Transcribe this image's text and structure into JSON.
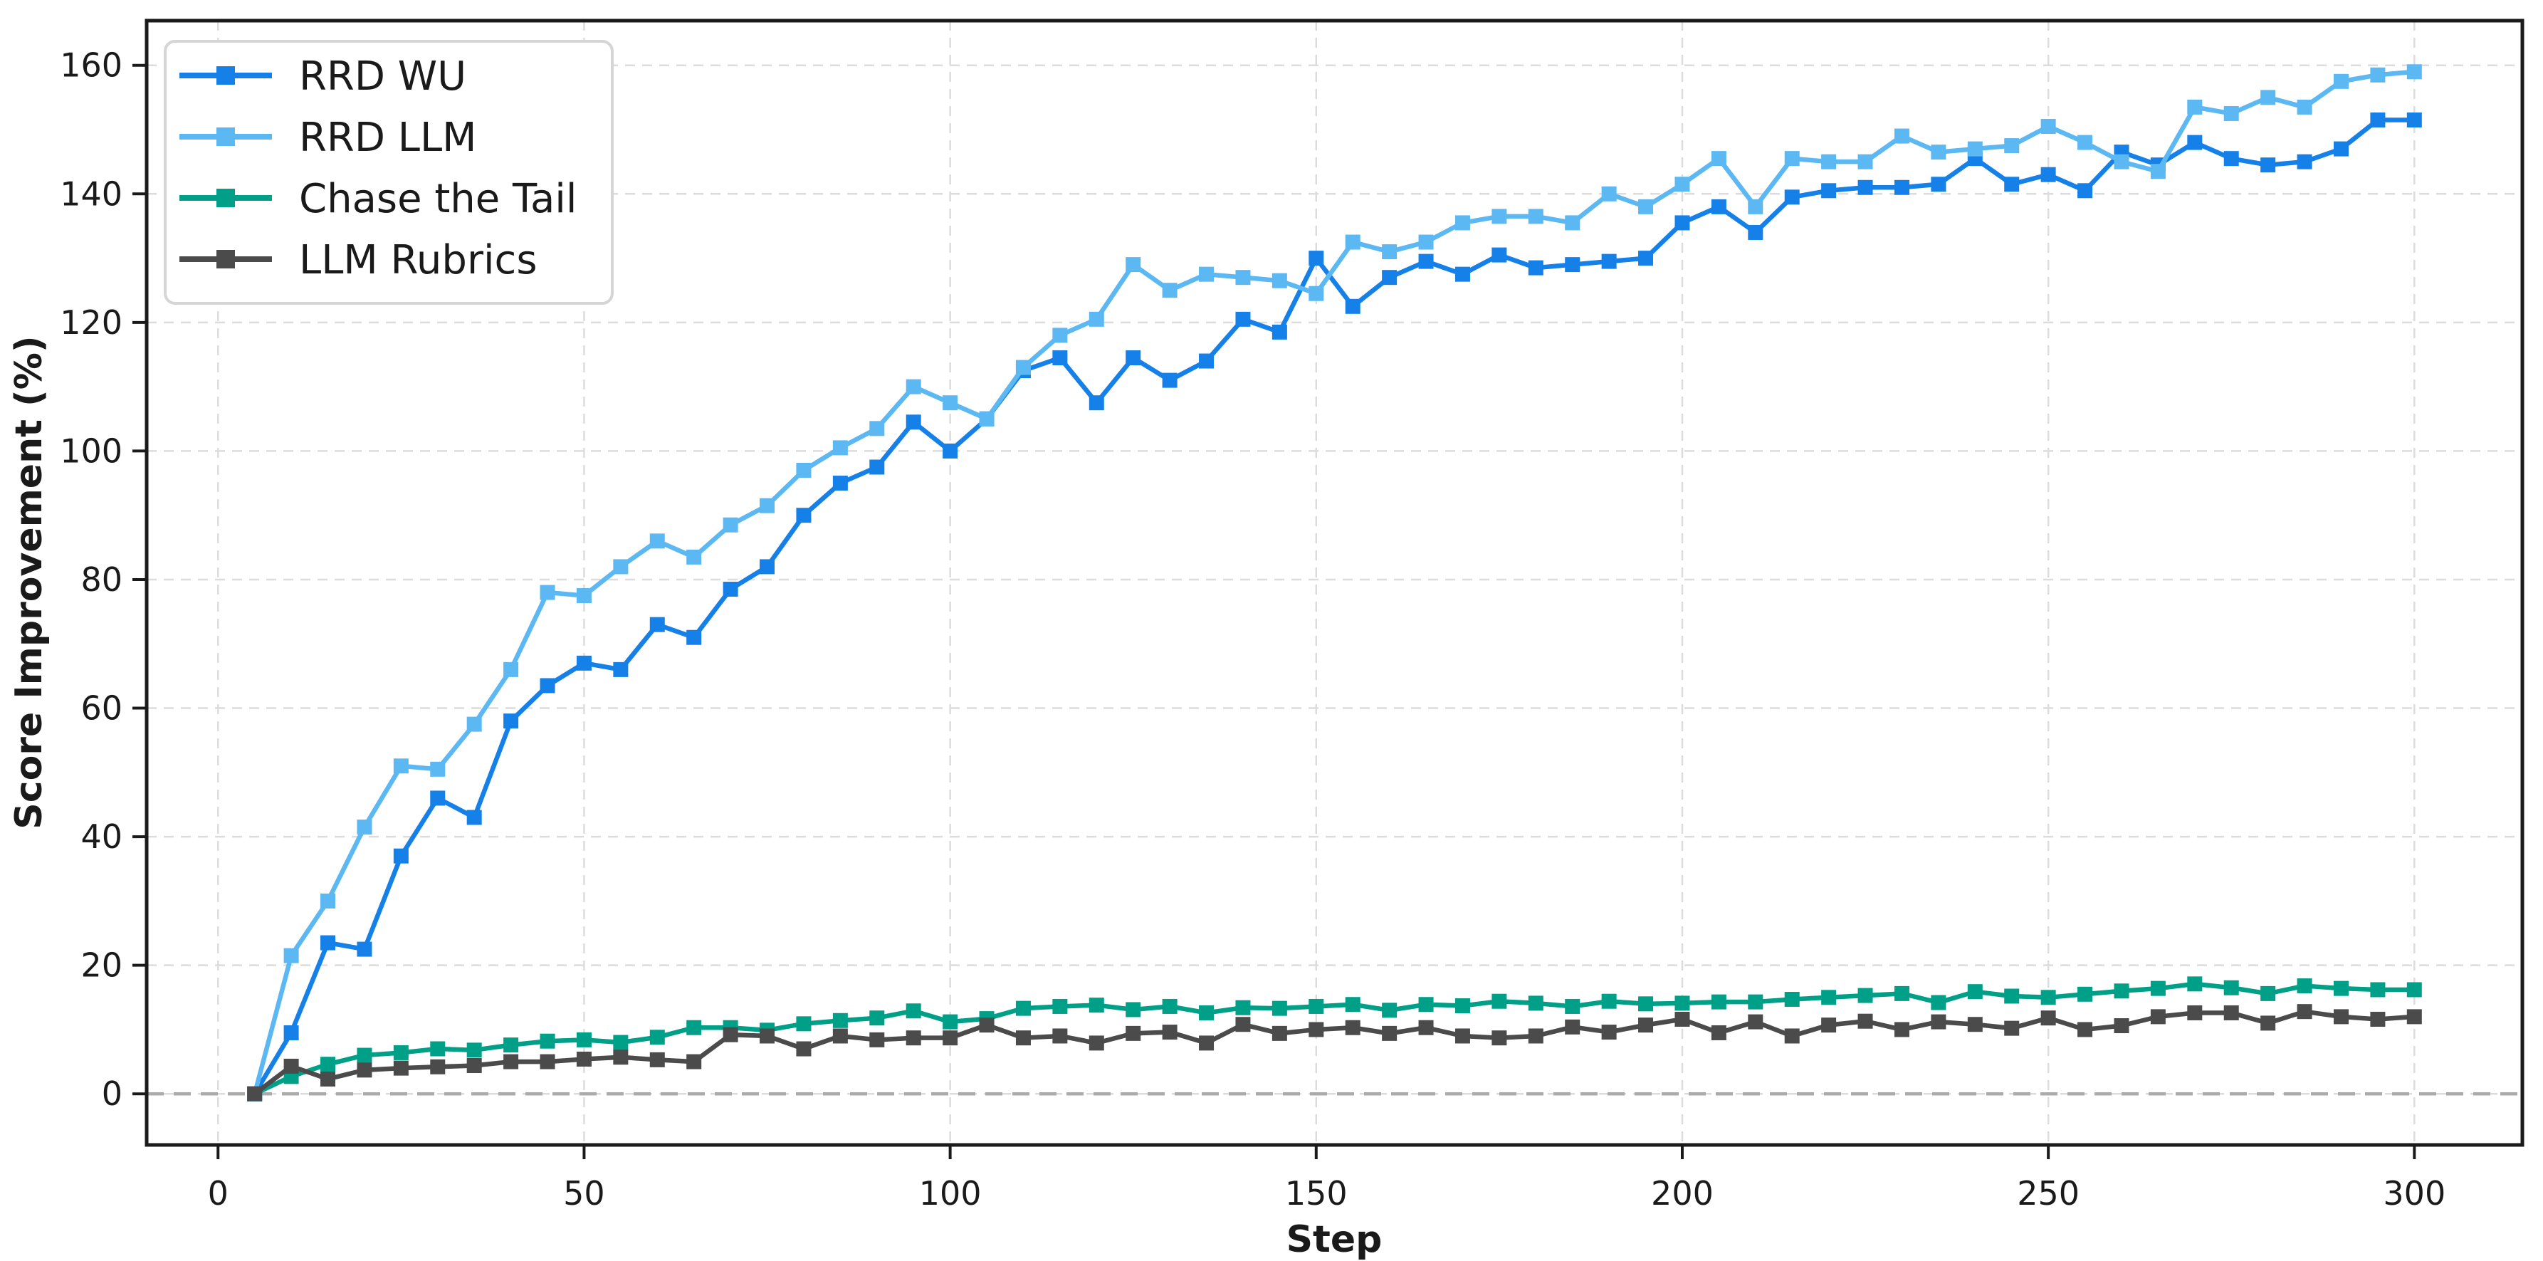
{
  "figure": {
    "background": "#ffffff",
    "spine_color": "#1a1a1a",
    "grid_color": "#dcdcdc",
    "zero_line_color": "#ababab",
    "legend_border_color": "#d5d5d5"
  },
  "chart_data": {
    "type": "line",
    "title": "",
    "xlabel": "Step",
    "ylabel": "Score Improvement (%)",
    "x_ticks": [
      0,
      50,
      100,
      150,
      200,
      250,
      300
    ],
    "y_ticks": [
      0,
      20,
      40,
      60,
      80,
      100,
      120,
      140,
      160
    ],
    "xlim": [
      -9.75,
      314.75
    ],
    "ylim": [
      -7.95,
      166.95
    ],
    "grid": true,
    "grid_style": "dashed",
    "zero_line": true,
    "legend_position": "upper left",
    "marker": "square",
    "x": [
      5,
      10,
      15,
      20,
      25,
      30,
      35,
      40,
      45,
      50,
      55,
      60,
      65,
      70,
      75,
      80,
      85,
      90,
      95,
      100,
      105,
      110,
      115,
      120,
      125,
      130,
      135,
      140,
      145,
      150,
      155,
      160,
      165,
      170,
      175,
      180,
      185,
      190,
      195,
      200,
      205,
      210,
      215,
      220,
      225,
      230,
      235,
      240,
      245,
      250,
      255,
      260,
      265,
      270,
      275,
      280,
      285,
      290,
      295,
      300
    ],
    "series": [
      {
        "name": "RRD WU",
        "color": "#1480e8",
        "values": [
          0,
          9.5,
          23.5,
          22.5,
          37,
          46,
          43,
          58,
          63.5,
          67,
          66,
          73,
          71,
          78.5,
          82,
          90,
          95,
          97.5,
          104.5,
          100,
          105,
          112.5,
          114.5,
          107.5,
          114.5,
          111,
          114,
          120.5,
          118.5,
          130,
          122.5,
          127,
          129.5,
          127.5,
          130.5,
          128.5,
          129,
          129.5,
          130,
          135.5,
          138,
          134,
          139.5,
          140.5,
          141,
          141,
          141.5,
          145.5,
          141.5,
          143,
          140.5,
          146.5,
          144.5,
          148,
          145.5,
          144.5,
          145,
          147,
          151.5,
          151.5
        ]
      },
      {
        "name": "RRD LLM",
        "color": "#5cb8f2",
        "values": [
          0,
          21.5,
          30,
          41.5,
          51,
          50.5,
          57.5,
          66,
          78,
          77.5,
          82,
          86,
          83.5,
          88.5,
          91.5,
          97,
          100.5,
          103.5,
          110,
          107.5,
          105,
          113,
          118,
          120.5,
          129,
          125,
          127.5,
          127,
          126.5,
          124.5,
          132.5,
          131,
          132.5,
          135.5,
          136.5,
          136.5,
          135.5,
          140,
          138,
          141.5,
          145.5,
          138,
          145.5,
          145,
          145,
          149,
          146.5,
          147,
          147.5,
          150.5,
          148,
          145,
          143.5,
          153.5,
          152.5,
          155,
          153.5,
          157.5,
          158.5,
          159
        ]
      },
      {
        "name": "Chase the Tail",
        "color": "#00a088",
        "values": [
          0,
          2.7,
          4.6,
          6,
          6.4,
          7,
          6.8,
          7.6,
          8.2,
          8.4,
          8,
          8.8,
          10.3,
          10.3,
          9.9,
          10.9,
          11.4,
          11.8,
          12.9,
          11.2,
          11.7,
          13.3,
          13.6,
          13.8,
          13.1,
          13.6,
          12.6,
          13.4,
          13.3,
          13.6,
          13.9,
          13,
          13.9,
          13.7,
          14.4,
          14.1,
          13.6,
          14.4,
          14,
          14.1,
          14.3,
          14.3,
          14.7,
          15,
          15.3,
          15.6,
          14.2,
          15.9,
          15.2,
          15,
          15.5,
          16,
          16.4,
          17.1,
          16.5,
          15.6,
          16.8,
          16.4,
          16.2,
          16.2
        ]
      },
      {
        "name": "LLM Rubrics",
        "color": "#4b4b4b",
        "values": [
          0,
          4.3,
          2.3,
          3.7,
          4,
          4.2,
          4.4,
          5,
          5,
          5.4,
          5.7,
          5.3,
          5,
          9.2,
          9,
          7,
          9,
          8.4,
          8.7,
          8.7,
          10.7,
          8.7,
          9,
          7.9,
          9.4,
          9.6,
          7.9,
          10.8,
          9.4,
          10,
          10.3,
          9.4,
          10.3,
          9,
          8.7,
          9,
          10.4,
          9.6,
          10.7,
          11.6,
          9.5,
          11.2,
          9,
          10.7,
          11.3,
          10,
          11.2,
          10.8,
          10.2,
          11.8,
          10,
          10.6,
          12,
          12.6,
          12.6,
          11,
          12.8,
          12,
          11.6,
          12
        ]
      }
    ]
  }
}
